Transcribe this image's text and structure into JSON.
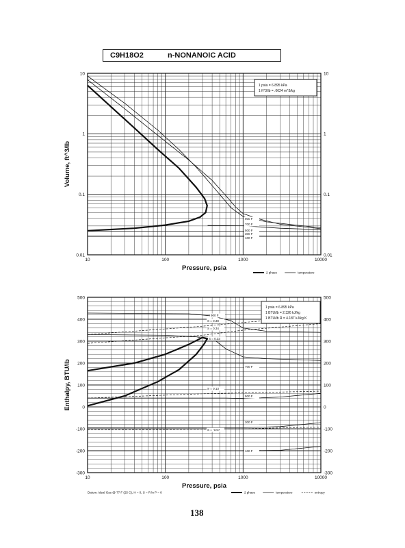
{
  "header": {
    "formula": "C9H18O2",
    "name": "n-NONANOIC ACID"
  },
  "page_number": "138",
  "chart_data": [
    {
      "type": "line",
      "title": "",
      "xlabel": "Pressure,  psia",
      "ylabel": "Volume, ft^3/lb",
      "x_scale": "log",
      "y_scale": "log",
      "xlim": [
        10,
        10000
      ],
      "ylim": [
        0.01,
        10
      ],
      "x_ticks": [
        "10",
        "100",
        "1000",
        "10000"
      ],
      "y_ticks_left": [
        "10",
        "1",
        "0.1",
        "0.01"
      ],
      "y_ticks_right": [
        "10",
        "1",
        "0.1",
        "0.01"
      ],
      "grid": true,
      "legend_position": "bottom-right",
      "legend": [
        {
          "label": "2 phase",
          "style": "thick"
        },
        {
          "label": "temperature",
          "style": "thin"
        }
      ],
      "conversion_box": [
        "1 psia  =  6.895 kPa",
        "1 ft^3/lb  =  .0624 m^3/kg"
      ],
      "temperature_labels": [
        "900 F",
        "700 F",
        "500 F",
        "300 F",
        "100 F"
      ],
      "series": [
        {
          "name": "2 phase",
          "points": [
            [
              10,
              6.3
            ],
            [
              20,
              2.8
            ],
            [
              40,
              1.25
            ],
            [
              80,
              0.55
            ],
            [
              150,
              0.27
            ],
            [
              250,
              0.13
            ],
            [
              320,
              0.085
            ],
            [
              345,
              0.065
            ],
            [
              330,
              0.05
            ],
            [
              280,
              0.042
            ],
            [
              200,
              0.036
            ],
            [
              100,
              0.031
            ],
            [
              40,
              0.0275
            ],
            [
              10,
              0.025
            ]
          ]
        },
        {
          "name": "900 F",
          "points": [
            [
              10,
              7.8
            ],
            [
              30,
              2.6
            ],
            [
              100,
              0.75
            ],
            [
              200,
              0.37
            ],
            [
              400,
              0.17
            ],
            [
              600,
              0.095
            ],
            [
              800,
              0.062
            ],
            [
              1000,
              0.048
            ],
            [
              1500,
              0.04
            ],
            [
              3000,
              0.032
            ],
            [
              10000,
              0.027
            ]
          ]
        },
        {
          "name": "700 F",
          "points": [
            [
              10,
              9.0
            ],
            [
              30,
              3.2
            ],
            [
              80,
              1.15
            ],
            [
              150,
              0.55
            ],
            [
              250,
              0.28
            ],
            [
              350,
              0.17
            ],
            [
              500,
              0.1
            ],
            [
              700,
              0.06
            ],
            [
              1000,
              0.043
            ],
            [
              2000,
              0.035
            ],
            [
              10000,
              0.028
            ]
          ]
        },
        {
          "name": "500 F",
          "points": [
            [
              350,
              0.0305
            ],
            [
              1000,
              0.0302
            ],
            [
              3000,
              0.0275
            ],
            [
              10000,
              0.026
            ]
          ]
        },
        {
          "name": "300 F",
          "points": [
            [
              10,
              0.0245
            ],
            [
              1000,
              0.0245
            ],
            [
              10000,
              0.0238
            ]
          ]
        },
        {
          "name": "100 F",
          "points": [
            [
              10,
              0.0205
            ],
            [
              1000,
              0.0205
            ],
            [
              10000,
              0.0205
            ]
          ]
        }
      ]
    },
    {
      "type": "line",
      "title": "",
      "xlabel": "Pressure,  psia",
      "ylabel": "Enthalpy, BTU/lb",
      "x_scale": "log",
      "y_scale": "linear",
      "xlim": [
        10,
        10000
      ],
      "ylim": [
        -300,
        500
      ],
      "x_ticks": [
        "10",
        "100",
        "1000",
        "10000"
      ],
      "y_ticks_left": [
        "500",
        "400",
        "300",
        "200",
        "100",
        "0",
        "-100",
        "-200",
        "-300"
      ],
      "y_ticks_right": [
        "500",
        "400",
        "300",
        "200",
        "100",
        "0",
        "-100",
        "-200",
        "-300"
      ],
      "grid": true,
      "legend_position": "bottom-right",
      "legend": [
        {
          "label": "2 phase",
          "style": "thick"
        },
        {
          "label": "temperature",
          "style": "thin"
        },
        {
          "label": "entropy",
          "style": "dashed"
        }
      ],
      "conversion_box": [
        "1 psia  =  6.895 kPa",
        "1 BTU/lb  =  2.326 kJ/kg",
        "1 BTU/lb R  =  4.187 kJ/kg K"
      ],
      "datum_note": "Datum: Ideal Gas @ 77 F (25 C),  H = 0,  S = R ln P = 0",
      "temperature_labels": [
        "900 F",
        "700 F",
        "500 F",
        "300 F",
        "100 F"
      ],
      "entropy_labels": [
        "S = 0.38",
        "S = 0.34",
        "S = 0.33",
        "S = 0.13",
        "S = -0.07"
      ],
      "series": [
        {
          "name": "2 phase",
          "points": [
            [
              10,
              5
            ],
            [
              30,
              50
            ],
            [
              80,
              115
            ],
            [
              150,
              170
            ],
            [
              250,
              240
            ],
            [
              320,
              290
            ],
            [
              345,
              312
            ],
            [
              300,
              317
            ],
            [
              200,
              285
            ],
            [
              100,
              240
            ],
            [
              40,
              200
            ],
            [
              10,
              165
            ]
          ]
        },
        {
          "name": "900 F",
          "points": [
            [
              10,
              428
            ],
            [
              200,
              425
            ],
            [
              400,
              415
            ],
            [
              700,
              393
            ],
            [
              1000,
              360
            ],
            [
              2000,
              345
            ],
            [
              10000,
              340
            ]
          ]
        },
        {
          "name": "700 F",
          "points": [
            [
              10,
              330
            ],
            [
              100,
              327
            ],
            [
              250,
              320
            ],
            [
              450,
              300
            ],
            [
              600,
              265
            ],
            [
              1000,
              228
            ],
            [
              2000,
              220
            ],
            [
              10000,
              212
            ]
          ]
        },
        {
          "name": "500 F",
          "points": [
            [
              10,
              40
            ],
            [
              600,
              40
            ],
            [
              1000,
              38
            ],
            [
              3000,
              45
            ],
            [
              10000,
              62
            ]
          ]
        },
        {
          "name": "300 F",
          "points": [
            [
              10,
              -95
            ],
            [
              1000,
              -95
            ],
            [
              3000,
              -90
            ],
            [
              10000,
              -72
            ]
          ]
        },
        {
          "name": "100 F",
          "points": [
            [
              10,
              -200
            ],
            [
              1000,
              -200
            ],
            [
              3000,
              -198
            ],
            [
              10000,
              -180
            ]
          ]
        },
        {
          "name": "S = 0.38",
          "style": "dashed",
          "points": [
            [
              10,
              330
            ],
            [
              300,
              368
            ],
            [
              1000,
              385
            ],
            [
              10000,
              415
            ]
          ]
        },
        {
          "name": "S = 0.34",
          "style": "dashed",
          "points": [
            [
              10,
              290
            ],
            [
              300,
              327
            ],
            [
              1000,
              350
            ],
            [
              10000,
              380
            ]
          ]
        },
        {
          "name": "S = 0.13",
          "style": "dashed",
          "points": [
            [
              10,
              40
            ],
            [
              300,
              60
            ],
            [
              1000,
              64
            ],
            [
              10000,
              72
            ]
          ]
        },
        {
          "name": "S = -0.07",
          "style": "dashed",
          "points": [
            [
              10,
              -105
            ],
            [
              1000,
              -100
            ],
            [
              10000,
              -92
            ]
          ]
        }
      ]
    }
  ]
}
